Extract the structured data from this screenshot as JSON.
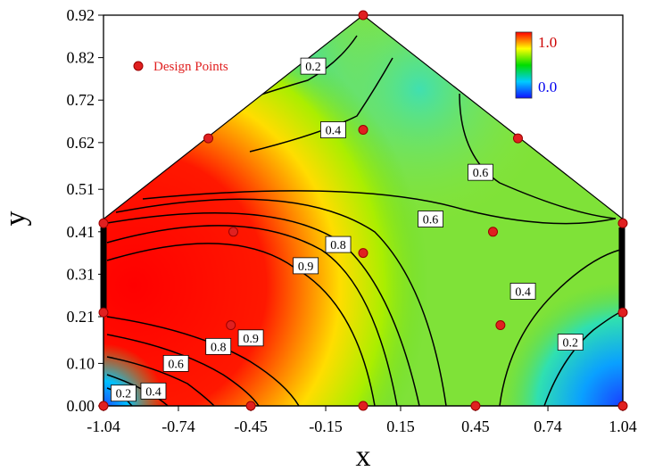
{
  "chart_data": {
    "type": "contour",
    "title": "",
    "xlabel": "x",
    "ylabel": "y",
    "xlim": [
      -1.04,
      1.04
    ],
    "ylim": [
      0.0,
      0.92
    ],
    "x_ticks": [
      "-1.04",
      "-0.74",
      "-0.45",
      "-0.15",
      "0.15",
      "0.45",
      "0.74",
      "1.04"
    ],
    "y_ticks": [
      "0.00",
      "0.10",
      "0.21",
      "0.31",
      "0.41",
      "0.51",
      "0.62",
      "0.72",
      "0.82",
      "0.92"
    ],
    "region_vertices": [
      [
        -1.04,
        0.0
      ],
      [
        1.04,
        0.0
      ],
      [
        1.04,
        0.44
      ],
      [
        0.0,
        0.92
      ],
      [
        -1.04,
        0.44
      ]
    ],
    "colorscale": {
      "min_label": "0.0",
      "max_label": "1.0",
      "colors": [
        "#1010ff",
        "#00ccff",
        "#00dd00",
        "#ffff00",
        "#ff0000"
      ],
      "max_label_color": "#cc0000",
      "min_label_color": "#0000ee"
    },
    "legend": {
      "label": "Design Points",
      "marker_color": "#e02020",
      "text_color": "#e02020"
    },
    "peak_region": {
      "x_range": [
        -1.04,
        -0.3
      ],
      "y_range": [
        0.0,
        0.44
      ],
      "value": 1.0
    },
    "design_points": [
      {
        "x": -1.04,
        "y": 0.0
      },
      {
        "x": -0.45,
        "y": 0.0
      },
      {
        "x": 0.0,
        "y": 0.0
      },
      {
        "x": 0.45,
        "y": 0.0
      },
      {
        "x": 1.04,
        "y": 0.0
      },
      {
        "x": -1.04,
        "y": 0.22
      },
      {
        "x": -1.04,
        "y": 0.43
      },
      {
        "x": 1.04,
        "y": 0.22
      },
      {
        "x": 1.04,
        "y": 0.43
      },
      {
        "x": -0.53,
        "y": 0.19
      },
      {
        "x": -0.52,
        "y": 0.41
      },
      {
        "x": 0.0,
        "y": 0.36
      },
      {
        "x": 0.0,
        "y": 0.65
      },
      {
        "x": 0.52,
        "y": 0.41
      },
      {
        "x": 0.55,
        "y": 0.19
      },
      {
        "x": -0.62,
        "y": 0.63
      },
      {
        "x": 0.62,
        "y": 0.63
      },
      {
        "x": 0.0,
        "y": 0.92
      }
    ],
    "contour_labels": [
      {
        "text": "0.2",
        "x": -0.2,
        "y": 0.8
      },
      {
        "text": "0.4",
        "x": -0.12,
        "y": 0.65
      },
      {
        "text": "0.6",
        "x": 0.47,
        "y": 0.55
      },
      {
        "text": "0.6",
        "x": 0.27,
        "y": 0.44
      },
      {
        "text": "0.8",
        "x": -0.1,
        "y": 0.38
      },
      {
        "text": "0.9",
        "x": -0.23,
        "y": 0.33
      },
      {
        "text": "0.4",
        "x": 0.64,
        "y": 0.27
      },
      {
        "text": "0.2",
        "x": 0.83,
        "y": 0.15
      },
      {
        "text": "0.9",
        "x": -0.45,
        "y": 0.16
      },
      {
        "text": "0.8",
        "x": -0.58,
        "y": 0.14
      },
      {
        "text": "0.6",
        "x": -0.75,
        "y": 0.1
      },
      {
        "text": "0.4",
        "x": -0.84,
        "y": 0.035
      },
      {
        "text": "0.2",
        "x": -0.96,
        "y": 0.03
      }
    ]
  }
}
